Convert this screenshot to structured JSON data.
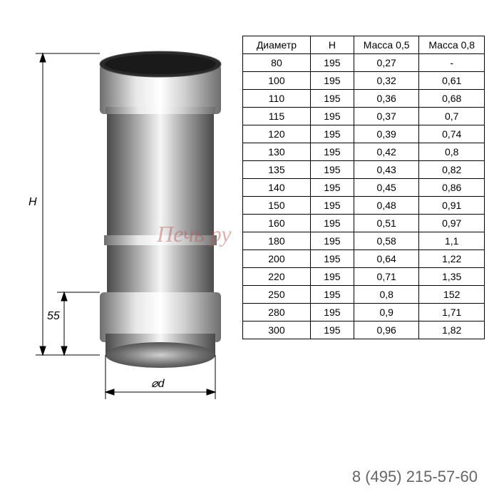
{
  "diagram": {
    "height_label": "H",
    "lower_label": "55",
    "diameter_label": "⌀d",
    "stroke_color": "#000000",
    "body_gradient": [
      "#4a4a4a",
      "#8d8d8d",
      "#f6f6f6",
      "#9c9c9c",
      "#4a4a4a"
    ],
    "cap_gradient": [
      "#6e6e6e",
      "#e8e8e8",
      "#ffffff",
      "#cfcfcf",
      "#6e6e6e"
    ]
  },
  "table": {
    "columns": [
      "Диаметр",
      "H",
      "Масса 0,5",
      "Масса 0,8"
    ],
    "rows": [
      [
        "80",
        "195",
        "0,27",
        "-"
      ],
      [
        "100",
        "195",
        "0,32",
        "0,61"
      ],
      [
        "110",
        "195",
        "0,36",
        "0,68"
      ],
      [
        "115",
        "195",
        "0,37",
        "0,7"
      ],
      [
        "120",
        "195",
        "0,39",
        "0,74"
      ],
      [
        "130",
        "195",
        "0,42",
        "0,8"
      ],
      [
        "135",
        "195",
        "0,43",
        "0,82"
      ],
      [
        "140",
        "195",
        "0,45",
        "0,86"
      ],
      [
        "150",
        "195",
        "0,48",
        "0,91"
      ],
      [
        "160",
        "195",
        "0,51",
        "0,97"
      ],
      [
        "180",
        "195",
        "0,58",
        "1,1"
      ],
      [
        "200",
        "195",
        "0,64",
        "1,22"
      ],
      [
        "220",
        "195",
        "0,71",
        "1,35"
      ],
      [
        "250",
        "195",
        "0,8",
        "152"
      ],
      [
        "280",
        "195",
        "0,9",
        "1,71"
      ],
      [
        "300",
        "195",
        "0,96",
        "1,82"
      ]
    ],
    "col_widths": [
      "28%",
      "18%",
      "27%",
      "27%"
    ],
    "border_color": "#000000",
    "font_size": 14
  },
  "watermark": "Печь ру",
  "phone": "8 (495) 215-57-60",
  "phone_color": "#666666"
}
